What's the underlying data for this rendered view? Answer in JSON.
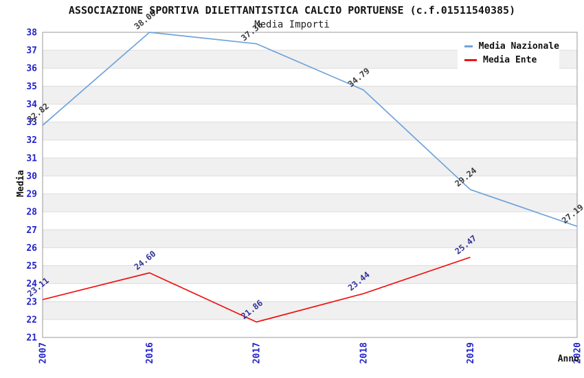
{
  "chart_data": {
    "type": "line",
    "title": "ASSOCIAZIONE SPORTIVA DILETTANTISTICA CALCIO PORTUENSE (c.f.01511540385)",
    "subtitle": "Media Importi",
    "xlabel": "Anno",
    "ylabel": "Media",
    "categories": [
      "2007",
      "2016",
      "2017",
      "2018",
      "2019",
      "2020"
    ],
    "series": [
      {
        "name": "Media Nazionale",
        "color": "#6FA3D9",
        "label_color": "#3C3C3C",
        "values": [
          32.82,
          38.0,
          37.36,
          34.79,
          29.24,
          27.19
        ]
      },
      {
        "name": "Media Ente",
        "color": "#EE1111",
        "label_color": "#333399",
        "values": [
          23.11,
          24.6,
          21.86,
          23.44,
          25.47,
          null
        ]
      }
    ],
    "ylim": [
      21,
      38
    ],
    "y_tick_step": 1,
    "grid": true,
    "legend_position": "top-right",
    "colors": {
      "tick_label": "#2222CC",
      "band": "#F0F0F0",
      "gridline": "#DCDCDC",
      "border": "#999999"
    }
  }
}
